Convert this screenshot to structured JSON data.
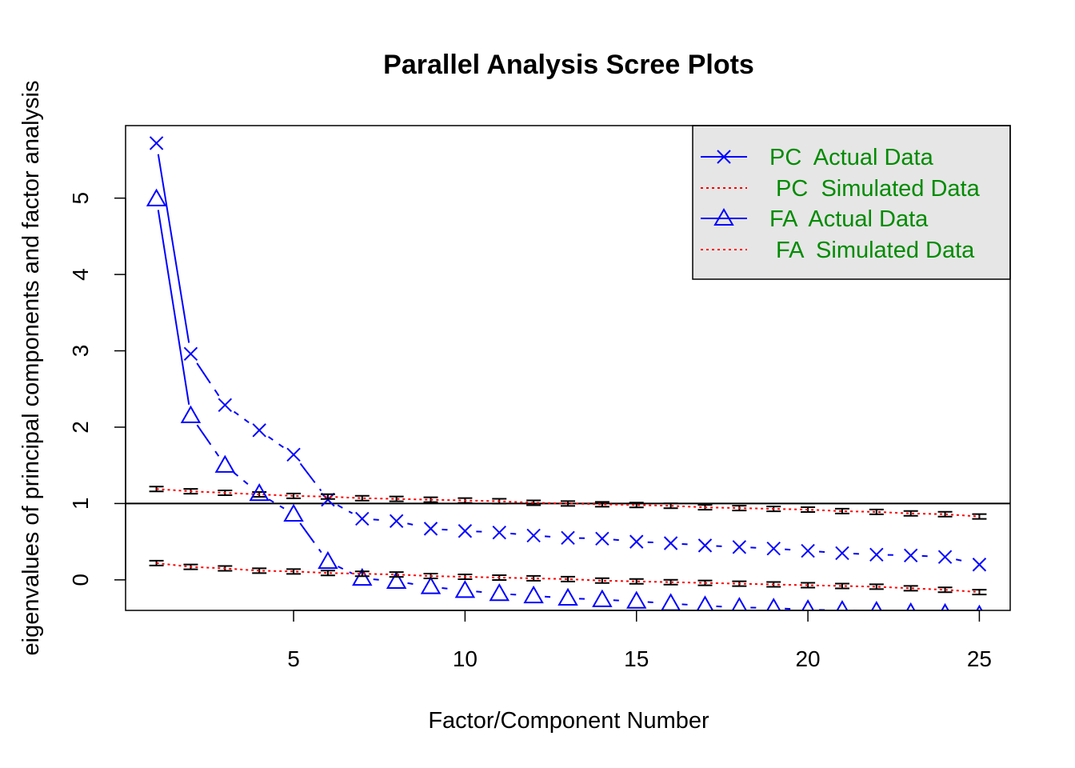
{
  "chart_data": {
    "type": "line",
    "title": "Parallel Analysis Scree Plots",
    "xlabel": "Factor/Component Number",
    "ylabel": "eigenvalues of principal components and factor analysis",
    "xlim": [
      0.1,
      25.9
    ],
    "ylim": [
      -0.4,
      5.95
    ],
    "x_ticks": [
      5,
      10,
      15,
      20,
      25
    ],
    "y_ticks": [
      0,
      1,
      2,
      3,
      4,
      5
    ],
    "reference_line": 1,
    "legend_position": "top-right",
    "x": [
      1,
      2,
      3,
      4,
      5,
      6,
      7,
      8,
      9,
      10,
      11,
      12,
      13,
      14,
      15,
      16,
      17,
      18,
      19,
      20,
      21,
      22,
      23,
      24,
      25
    ],
    "series": [
      {
        "name": "PC  Actual Data",
        "color": "#0000ff",
        "marker": "x",
        "values": [
          5.72,
          2.96,
          2.29,
          1.96,
          1.64,
          1.05,
          0.8,
          0.77,
          0.67,
          0.64,
          0.62,
          0.58,
          0.55,
          0.54,
          0.5,
          0.48,
          0.45,
          0.43,
          0.41,
          0.38,
          0.35,
          0.33,
          0.32,
          0.3,
          0.2
        ]
      },
      {
        "name": " PC  Simulated Data",
        "color": "#ff0000",
        "marker": "none",
        "values": [
          1.19,
          1.16,
          1.14,
          1.12,
          1.1,
          1.09,
          1.07,
          1.06,
          1.05,
          1.04,
          1.03,
          1.01,
          1.0,
          0.99,
          0.98,
          0.97,
          0.95,
          0.94,
          0.93,
          0.92,
          0.9,
          0.89,
          0.87,
          0.86,
          0.83
        ]
      },
      {
        "name": "FA  Actual Data",
        "color": "#0000ff",
        "marker": "triangle",
        "values": [
          4.99,
          2.15,
          1.5,
          1.13,
          0.86,
          0.24,
          0.02,
          -0.02,
          -0.09,
          -0.14,
          -0.18,
          -0.21,
          -0.24,
          -0.26,
          -0.28,
          -0.31,
          -0.34,
          -0.36,
          -0.37,
          -0.39,
          -0.4,
          -0.41,
          -0.43,
          -0.44,
          -0.46
        ]
      },
      {
        "name": " FA  Simulated Data",
        "color": "#ff0000",
        "marker": "none",
        "values": [
          0.22,
          0.17,
          0.15,
          0.12,
          0.11,
          0.09,
          0.08,
          0.07,
          0.05,
          0.04,
          0.03,
          0.02,
          0.01,
          -0.01,
          -0.02,
          -0.03,
          -0.04,
          -0.05,
          -0.06,
          -0.07,
          -0.08,
          -0.09,
          -0.11,
          -0.13,
          -0.16
        ]
      }
    ],
    "legend_text_color": "#008b00",
    "legend_background": "#e6e6e6"
  }
}
